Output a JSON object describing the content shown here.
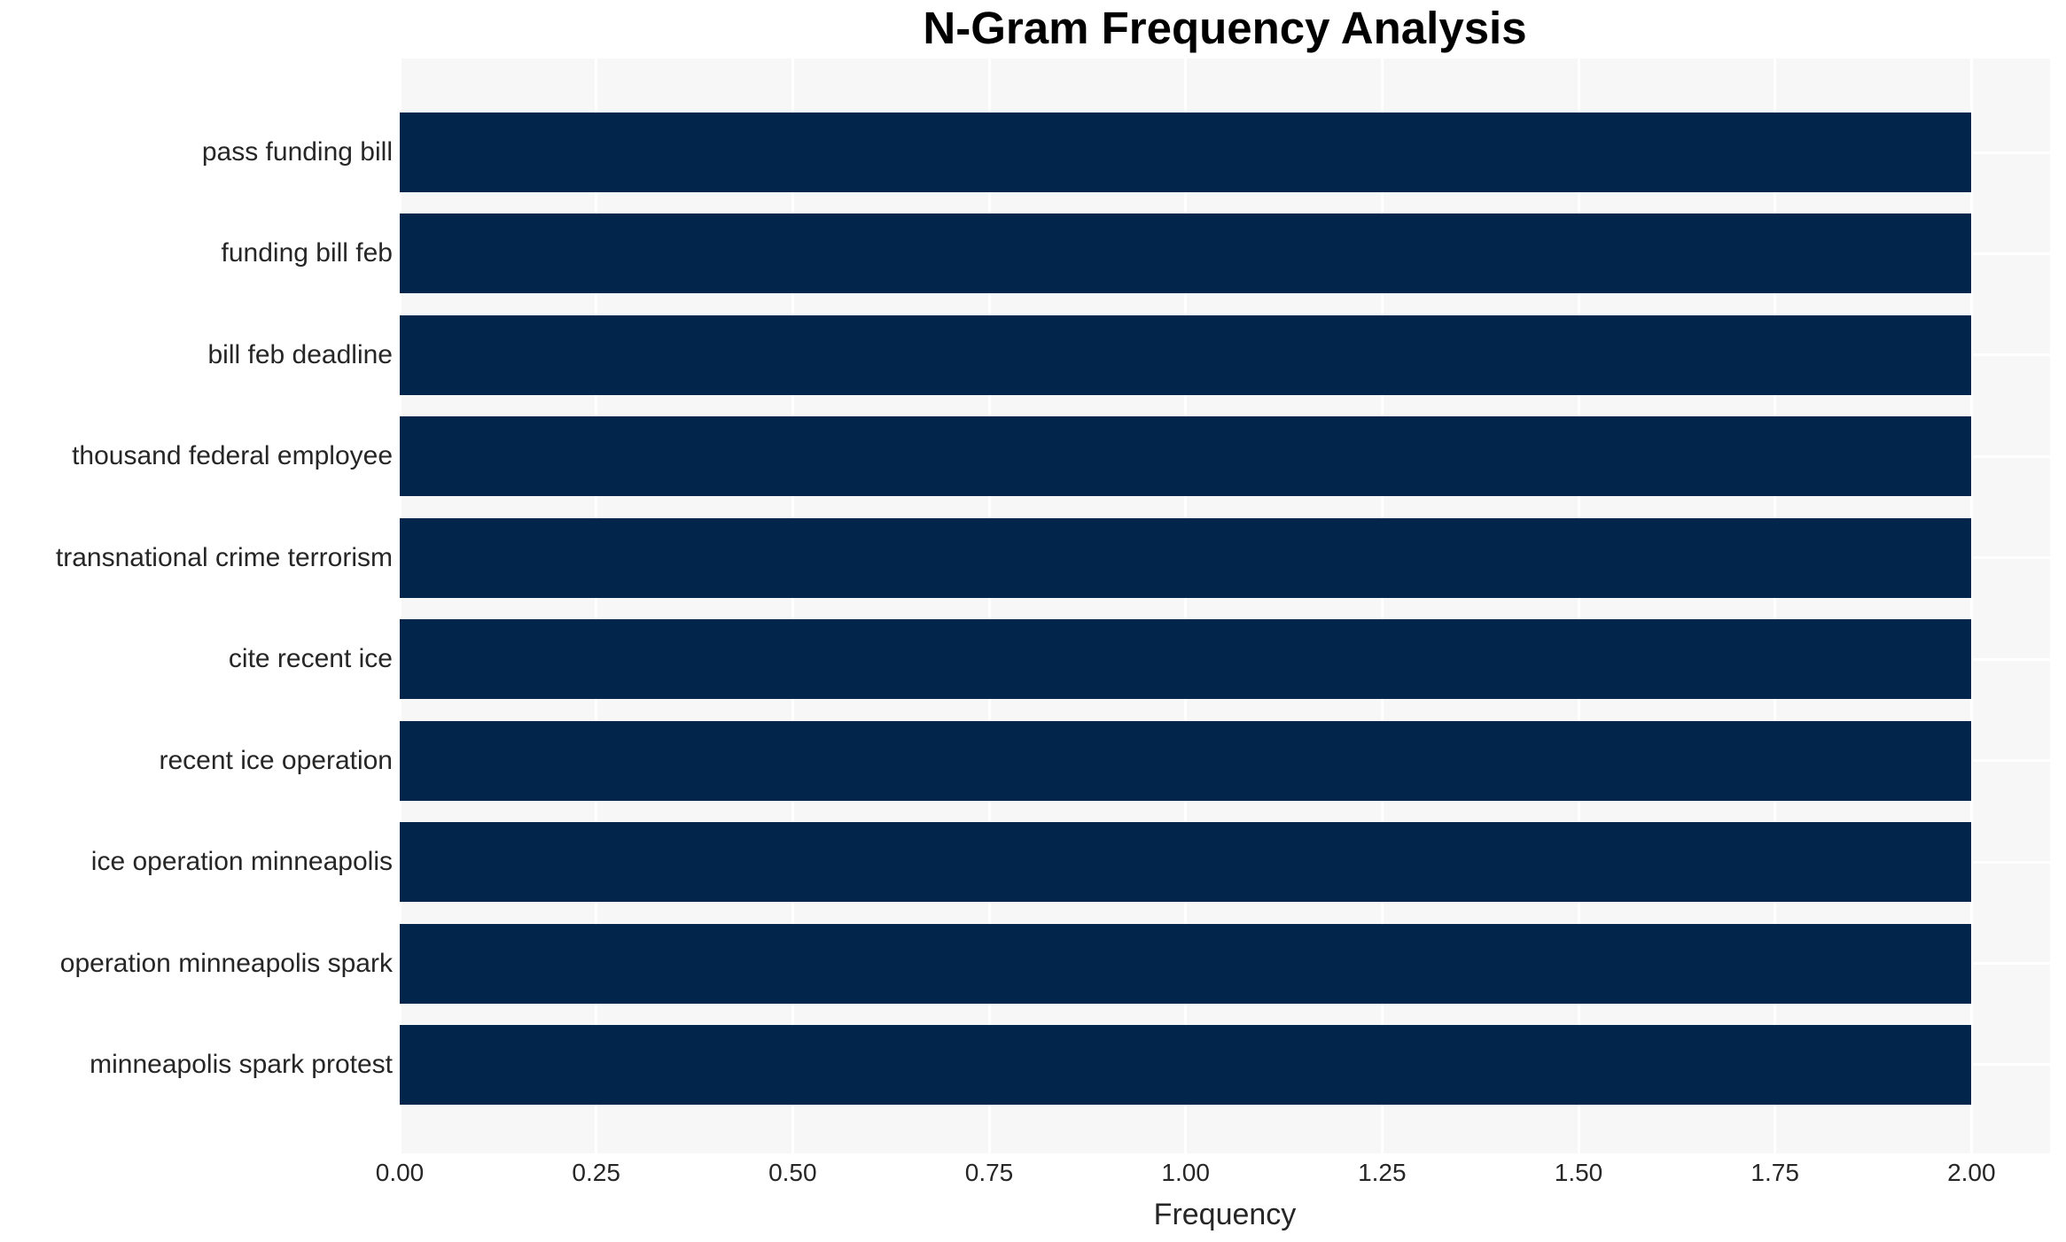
{
  "chart_data": {
    "type": "bar",
    "orientation": "horizontal",
    "title": "N-Gram Frequency Analysis",
    "xlabel": "Frequency",
    "ylabel": "",
    "categories": [
      "pass funding bill",
      "funding bill feb",
      "bill feb deadline",
      "thousand federal employee",
      "transnational crime terrorism",
      "cite recent ice",
      "recent ice operation",
      "ice operation minneapolis",
      "operation minneapolis spark",
      "minneapolis spark protest"
    ],
    "values": [
      2,
      2,
      2,
      2,
      2,
      2,
      2,
      2,
      2,
      2
    ],
    "xlim": [
      0,
      2.1
    ],
    "xticks": [
      0,
      0.25,
      0.5,
      0.75,
      1.0,
      1.25,
      1.5,
      1.75,
      2.0
    ],
    "xtick_labels": [
      "0.00",
      "0.25",
      "0.50",
      "0.75",
      "1.00",
      "1.25",
      "1.50",
      "1.75",
      "2.00"
    ],
    "grid": true,
    "legend": false,
    "colors": {
      "bar": "#02254c",
      "plot_background": "#f7f7f7",
      "gridline": "#ffffff",
      "tick_text": "#262626",
      "title_text": "#000000",
      "page_background": "#ffffff"
    }
  }
}
